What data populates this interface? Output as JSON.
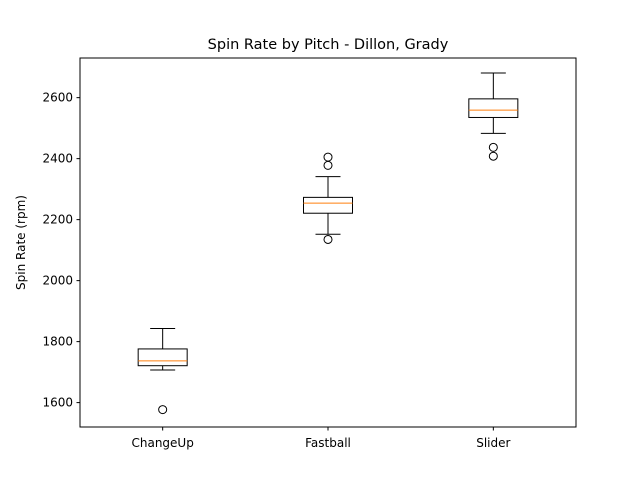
{
  "chart_data": {
    "type": "boxplot",
    "title": "Spin Rate by Pitch - Dillon, Grady",
    "xlabel": "",
    "ylabel": "Spin Rate (rpm)",
    "ylim": [
      1520,
      2730
    ],
    "yticks": [
      1600,
      1800,
      2000,
      2200,
      2400,
      2600
    ],
    "grid": false,
    "categories": [
      "ChangeUp",
      "Fastball",
      "Slider"
    ],
    "boxes": [
      {
        "category": "ChangeUp",
        "whisker_low": 1707,
        "q1": 1721,
        "median": 1737,
        "q3": 1776,
        "whisker_high": 1843,
        "fliers": [
          1577
        ]
      },
      {
        "category": "Fastball",
        "whisker_low": 2152,
        "q1": 2221,
        "median": 2254,
        "q3": 2273,
        "whisker_high": 2341,
        "fliers": [
          2135,
          2378,
          2405
        ]
      },
      {
        "category": "Slider",
        "whisker_low": 2483,
        "q1": 2535,
        "median": 2559,
        "q3": 2596,
        "whisker_high": 2681,
        "fliers": [
          2408,
          2437
        ]
      }
    ],
    "colors": {
      "box": "#000000",
      "median": "#ff7f0e",
      "flier": "#000000"
    }
  }
}
